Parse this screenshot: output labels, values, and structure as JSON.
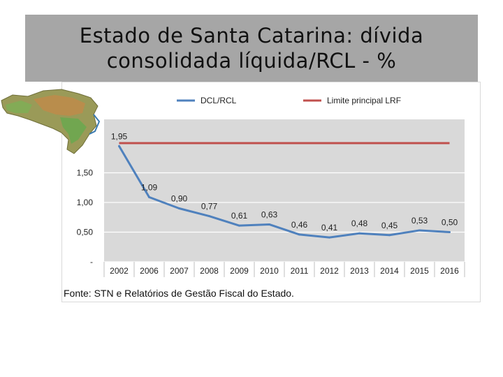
{
  "slide": {
    "title_line1": "Estado de Santa Catarina: dívida",
    "title_line2": "consolidada líquida/RCL - %",
    "source": "Fonte: STN e Relatórios de Gestão Fiscal do Estado."
  },
  "colors": {
    "title_bg": "#a6a6a6",
    "plot_bg": "#d9d9d9",
    "series_line": "#4f81bd",
    "limit_line": "#c0504d"
  },
  "chart_data": {
    "type": "line",
    "categories": [
      "2002",
      "2006",
      "2007",
      "2008",
      "2009",
      "2010",
      "2011",
      "2012",
      "2013",
      "2014",
      "2015",
      "2016"
    ],
    "series": [
      {
        "name": "DCL/RCL",
        "values": [
          1.95,
          1.09,
          0.9,
          0.77,
          0.61,
          0.63,
          0.46,
          0.41,
          0.48,
          0.45,
          0.53,
          0.5
        ],
        "labels": [
          "1,95",
          "1,09",
          "0,90",
          "0,77",
          "0,61",
          "0,63",
          "0,46",
          "0,41",
          "0,48",
          "0,45",
          "0,53",
          "0,50"
        ]
      },
      {
        "name": "Limite principal LRF",
        "values": [
          2,
          2,
          2,
          2,
          2,
          2,
          2,
          2,
          2,
          2,
          2,
          2
        ]
      }
    ],
    "y_ticks": [
      0,
      0.5,
      1.0,
      1.5
    ],
    "y_tick_labels": [
      "-",
      "0,50",
      "1,00",
      "1,50"
    ],
    "ylim": [
      0,
      2.4
    ],
    "grid": true,
    "legend_position": "top"
  }
}
